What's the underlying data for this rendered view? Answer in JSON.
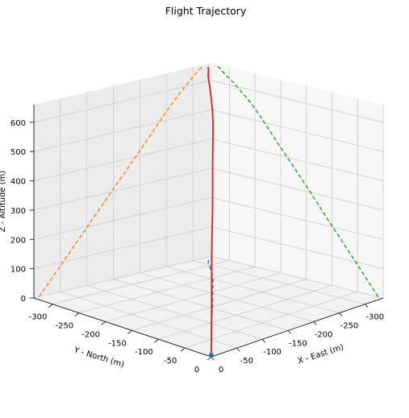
{
  "chart_data": {
    "type": "line3d",
    "title": "Flight Trajectory",
    "xlabel": "X - East (m)",
    "ylabel": "Y - North (m)",
    "zlabel": "Z - Altitude (m)",
    "x_ticks": [
      0,
      -50,
      -100,
      -150,
      -200,
      -250,
      -300
    ],
    "y_ticks": [
      0,
      -50,
      -100,
      -150,
      -200,
      -250,
      -300
    ],
    "z_ticks": [
      0,
      100,
      200,
      300,
      400,
      500,
      600
    ],
    "xlim": [
      -335,
      0
    ],
    "ylim": [
      -335,
      0
    ],
    "zlim": [
      0,
      660
    ],
    "grid": true,
    "series": [
      {
        "kind": "trajectory",
        "color": "#d62728",
        "points": [
          [
            -10,
            -10,
            0
          ],
          [
            -60,
            -58,
            110
          ],
          [
            -110,
            -107,
            220
          ],
          [
            -160,
            -155,
            330
          ],
          [
            -210,
            -205,
            440
          ],
          [
            -255,
            -250,
            540
          ],
          [
            -285,
            -285,
            600
          ],
          [
            -305,
            -310,
            635
          ],
          [
            -315,
            -320,
            650
          ],
          [
            -320,
            -326,
            656
          ]
        ]
      },
      {
        "kind": "projection-xy",
        "color": "#1f77b4",
        "points": [
          [
            -10,
            -10,
            0
          ],
          [
            -60,
            -58,
            0
          ],
          [
            -110,
            -107,
            0
          ],
          [
            -160,
            -155,
            0
          ],
          [
            -210,
            -205,
            0
          ],
          [
            -255,
            -250,
            0
          ],
          [
            -285,
            -285,
            0
          ],
          [
            -305,
            -310,
            0
          ],
          [
            -315,
            -320,
            0
          ],
          [
            -320,
            -326,
            0
          ]
        ]
      },
      {
        "kind": "projection-xz",
        "color": "#ff7f0e",
        "points": [
          [
            -10,
            -335,
            0
          ],
          [
            -60,
            -335,
            110
          ],
          [
            -110,
            -335,
            220
          ],
          [
            -160,
            -335,
            330
          ],
          [
            -210,
            -335,
            440
          ],
          [
            -255,
            -335,
            540
          ],
          [
            -285,
            -335,
            600
          ],
          [
            -305,
            -335,
            635
          ],
          [
            -315,
            -335,
            650
          ],
          [
            -320,
            -335,
            656
          ]
        ]
      },
      {
        "kind": "projection-yz",
        "color": "#2ca02c",
        "points": [
          [
            -335,
            -10,
            0
          ],
          [
            -335,
            -58,
            110
          ],
          [
            -335,
            -107,
            220
          ],
          [
            -335,
            -155,
            330
          ],
          [
            -335,
            -205,
            440
          ],
          [
            -335,
            -250,
            540
          ],
          [
            -335,
            -285,
            600
          ],
          [
            -335,
            -310,
            635
          ],
          [
            -335,
            -320,
            650
          ],
          [
            -335,
            -326,
            656
          ]
        ]
      }
    ],
    "start_marker": {
      "point": [
        -5,
        -5,
        0
      ],
      "color": "#1f77b4"
    }
  }
}
